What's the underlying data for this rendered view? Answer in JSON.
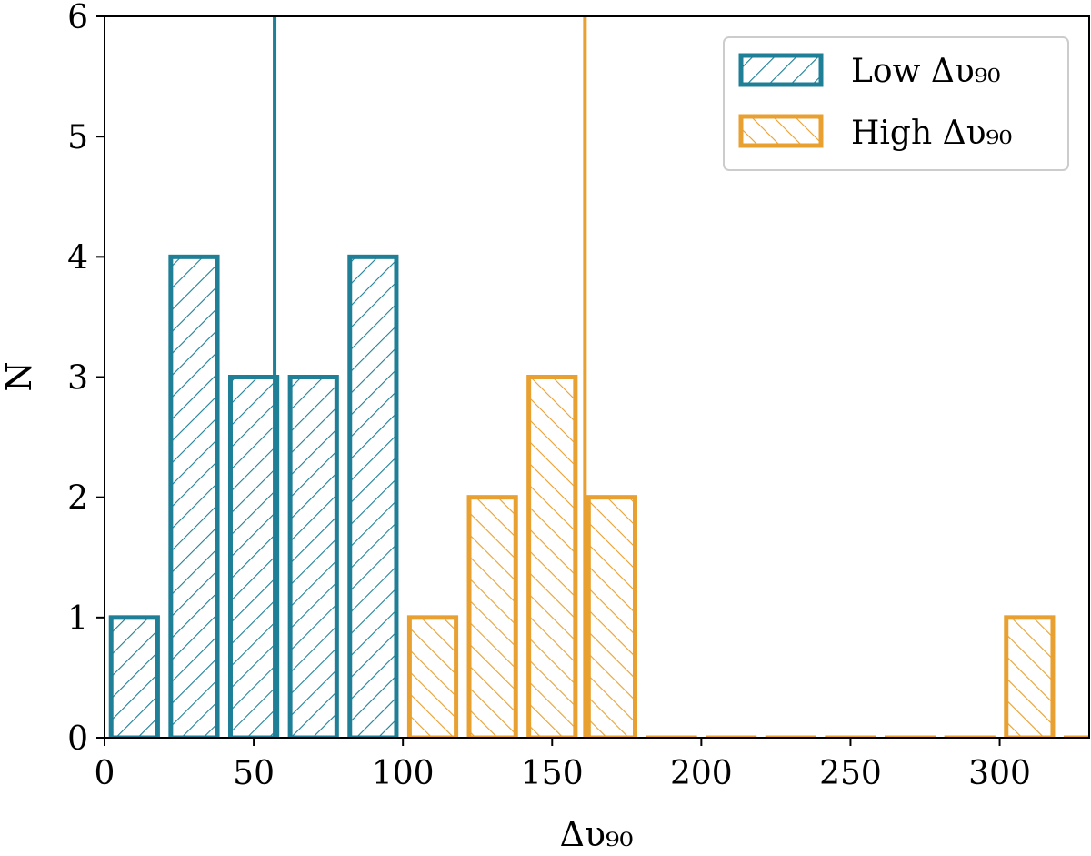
{
  "chart_data": {
    "type": "bar",
    "xlabel": "Δυ₉₀",
    "ylabel": "N",
    "xlim": [
      0,
      330
    ],
    "ylim": [
      0,
      6
    ],
    "x_ticks": [
      "0",
      "50",
      "100",
      "150",
      "200",
      "250",
      "300"
    ],
    "y_ticks": [
      "0",
      "1",
      "2",
      "3",
      "4",
      "5",
      "6"
    ],
    "grid": false,
    "legend_position": "top-right",
    "bin_width": 20,
    "series": [
      {
        "name": "Low Δυ₉₀",
        "color": "#1f7f96",
        "hatch": "forward-diagonal",
        "bins": [
          {
            "start": 0,
            "end": 20,
            "count": 1
          },
          {
            "start": 20,
            "end": 40,
            "count": 4
          },
          {
            "start": 40,
            "end": 60,
            "count": 3
          },
          {
            "start": 60,
            "end": 80,
            "count": 3
          },
          {
            "start": 80,
            "end": 100,
            "count": 4
          }
        ],
        "reference_line": 57
      },
      {
        "name": "High Δυ₉₀",
        "color": "#e8a030",
        "hatch": "back-diagonal",
        "bins": [
          {
            "start": 100,
            "end": 120,
            "count": 1
          },
          {
            "start": 120,
            "end": 140,
            "count": 2
          },
          {
            "start": 140,
            "end": 160,
            "count": 3
          },
          {
            "start": 160,
            "end": 180,
            "count": 2
          },
          {
            "start": 180,
            "end": 200,
            "count": 0
          },
          {
            "start": 200,
            "end": 220,
            "count": 0
          },
          {
            "start": 220,
            "end": 240,
            "count": 0
          },
          {
            "start": 240,
            "end": 260,
            "count": 0
          },
          {
            "start": 260,
            "end": 280,
            "count": 0
          },
          {
            "start": 280,
            "end": 300,
            "count": 0
          },
          {
            "start": 300,
            "end": 320,
            "count": 1
          },
          {
            "start": 320,
            "end": 340,
            "count": 0
          }
        ],
        "reference_line": 161
      }
    ]
  }
}
